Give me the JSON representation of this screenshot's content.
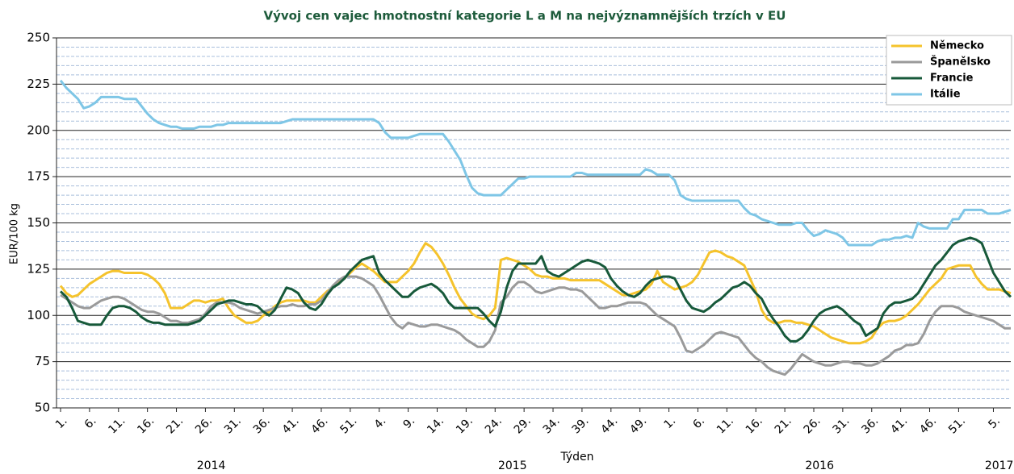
{
  "chart_data": {
    "type": "line",
    "title": "Vývoj cen vajec hmotnostní kategorie L a M na nejvýznamnějších trzích v EU",
    "y_label": "EUR/100 kg",
    "x_label": "Týden",
    "year_labels": [
      "2014",
      "2015",
      "2016",
      "2017"
    ],
    "ylim": [
      50,
      250
    ],
    "yticks": [
      50,
      75,
      100,
      125,
      150,
      175,
      200,
      225,
      250
    ],
    "minor_yticks": [
      55,
      60,
      65,
      70,
      80,
      85,
      90,
      95,
      105,
      110,
      115,
      120,
      130,
      135,
      140,
      145,
      155,
      160,
      165,
      170,
      180,
      185,
      190,
      195,
      205,
      210,
      215,
      220,
      230,
      235,
      240,
      245
    ],
    "grid": true,
    "legend": "upper right",
    "categories": [
      "1.",
      null,
      null,
      null,
      null,
      "6.",
      null,
      null,
      null,
      null,
      "11.",
      null,
      null,
      null,
      null,
      "16.",
      null,
      null,
      null,
      null,
      "21.",
      null,
      null,
      null,
      null,
      "26.",
      null,
      null,
      null,
      null,
      "31.",
      null,
      null,
      null,
      null,
      "36.",
      null,
      null,
      null,
      null,
      "41.",
      null,
      null,
      null,
      null,
      "46.",
      null,
      null,
      null,
      null,
      "51.",
      null,
      null,
      null,
      null,
      "4.",
      null,
      null,
      null,
      null,
      "9.",
      null,
      null,
      null,
      null,
      "14.",
      null,
      null,
      null,
      null,
      "19.",
      null,
      null,
      null,
      null,
      "24.",
      null,
      null,
      null,
      null,
      "29.",
      null,
      null,
      null,
      null,
      "34.",
      null,
      null,
      null,
      null,
      "39.",
      null,
      null,
      null,
      null,
      "44.",
      null,
      null,
      null,
      null,
      "49.",
      null,
      null,
      null,
      null,
      "1.",
      null,
      null,
      null,
      null,
      "6.",
      null,
      null,
      null,
      null,
      "11.",
      null,
      null,
      null,
      null,
      "16.",
      null,
      null,
      null,
      null,
      "21.",
      null,
      null,
      null,
      null,
      "26.",
      null,
      null,
      null,
      null,
      "31.",
      null,
      null,
      null,
      null,
      "36.",
      null,
      null,
      null,
      null,
      "41.",
      null,
      null,
      null,
      null,
      "46.",
      null,
      null,
      null,
      null,
      "51.",
      null,
      null,
      null,
      null,
      null,
      "5.",
      null,
      null,
      null
    ],
    "series": [
      {
        "name": "Německo",
        "color": "#f5c32c",
        "values": [
          116,
          112,
          110,
          111,
          114,
          117,
          119,
          121,
          123,
          124,
          124,
          123,
          123,
          123,
          123,
          122,
          120,
          117,
          112,
          104,
          104,
          104,
          106,
          108,
          108,
          107,
          108,
          108,
          109,
          104,
          100,
          98,
          96,
          96,
          97,
          100,
          102,
          105,
          107,
          108,
          108,
          108,
          108,
          107,
          107,
          110,
          113,
          115,
          118,
          120,
          123,
          126,
          128,
          126,
          124,
          121,
          118,
          118,
          118,
          121,
          124,
          128,
          134,
          139,
          137,
          133,
          128,
          122,
          115,
          109,
          105,
          101,
          99,
          98,
          100,
          104,
          130,
          131,
          130,
          129,
          127,
          125,
          122,
          121,
          121,
          120,
          120,
          120,
          119,
          119,
          119,
          119,
          119,
          119,
          117,
          115,
          113,
          111,
          111,
          112,
          113,
          114,
          117,
          124,
          118,
          116,
          114,
          115,
          116,
          118,
          122,
          128,
          134,
          135,
          134,
          132,
          131,
          129,
          127,
          120,
          113,
          103,
          98,
          96,
          96,
          97,
          97,
          96,
          96,
          95,
          94,
          92,
          90,
          88,
          87,
          86,
          85,
          85,
          85,
          86,
          88,
          93,
          96,
          97,
          97,
          98,
          100,
          103,
          106,
          110,
          114,
          117,
          120,
          125,
          126,
          127,
          127,
          127,
          121,
          117,
          114,
          114,
          114,
          113,
          112
        ]
      },
      {
        "name": "Španělsko",
        "color": "#9a9a9a",
        "values": [
          111,
          109,
          107,
          105,
          104,
          104,
          106,
          108,
          109,
          110,
          110,
          109,
          107,
          105,
          103,
          102,
          102,
          101,
          99,
          97,
          97,
          96,
          96,
          97,
          98,
          101,
          105,
          107,
          107,
          107,
          106,
          104,
          103,
          102,
          101,
          102,
          103,
          104,
          105,
          105,
          106,
          105,
          105,
          106,
          106,
          108,
          112,
          116,
          119,
          121,
          121,
          121,
          120,
          118,
          116,
          111,
          105,
          99,
          95,
          93,
          96,
          95,
          94,
          94,
          95,
          95,
          94,
          93,
          92,
          90,
          87,
          85,
          83,
          83,
          86,
          92,
          107,
          110,
          115,
          118,
          118,
          116,
          113,
          112,
          113,
          114,
          115,
          115,
          114,
          114,
          113,
          110,
          107,
          104,
          104,
          105,
          105,
          106,
          107,
          107,
          107,
          106,
          103,
          100,
          98,
          96,
          94,
          88,
          81,
          80,
          82,
          84,
          87,
          90,
          91,
          90,
          89,
          88,
          84,
          80,
          77,
          75,
          72,
          70,
          69,
          68,
          71,
          75,
          79,
          77,
          75,
          74,
          73,
          73,
          74,
          75,
          75,
          74,
          74,
          73,
          73,
          74,
          76,
          78,
          81,
          82,
          84,
          84,
          85,
          90,
          97,
          102,
          105,
          105,
          105,
          104,
          102,
          101,
          100,
          99,
          98,
          97,
          95,
          93,
          93
        ]
      },
      {
        "name": "Francie",
        "color": "#17593a",
        "values": [
          113,
          110,
          104,
          97,
          96,
          95,
          95,
          95,
          100,
          104,
          105,
          105,
          104,
          102,
          99,
          97,
          96,
          96,
          95,
          95,
          95,
          95,
          95,
          96,
          97,
          100,
          103,
          106,
          107,
          108,
          108,
          107,
          106,
          106,
          105,
          102,
          100,
          103,
          109,
          115,
          114,
          112,
          107,
          104,
          103,
          106,
          111,
          115,
          117,
          120,
          124,
          127,
          130,
          131,
          132,
          123,
          119,
          116,
          113,
          110,
          110,
          113,
          115,
          116,
          117,
          115,
          112,
          107,
          104,
          104,
          104,
          104,
          104,
          101,
          97,
          94,
          102,
          115,
          124,
          128,
          128,
          128,
          128,
          132,
          124,
          122,
          121,
          123,
          125,
          127,
          129,
          130,
          129,
          128,
          126,
          120,
          116,
          113,
          111,
          110,
          112,
          116,
          119,
          120,
          121,
          121,
          120,
          114,
          108,
          104,
          103,
          102,
          104,
          107,
          109,
          112,
          115,
          116,
          118,
          116,
          112,
          109,
          103,
          98,
          94,
          89,
          86,
          86,
          88,
          92,
          97,
          101,
          103,
          104,
          105,
          103,
          100,
          97,
          95,
          89,
          91,
          93,
          101,
          105,
          107,
          107,
          108,
          109,
          112,
          117,
          122,
          127,
          130,
          134,
          138,
          140,
          141,
          142,
          141,
          139,
          131,
          123,
          118,
          113,
          110
        ]
      },
      {
        "name": "Itálie",
        "color": "#7ec6e6",
        "values": [
          227,
          223,
          220,
          217,
          212,
          213,
          215,
          218,
          218,
          218,
          218,
          217,
          217,
          217,
          213,
          209,
          206,
          204,
          203,
          202,
          202,
          201,
          201,
          201,
          202,
          202,
          202,
          203,
          203,
          204,
          204,
          204,
          204,
          204,
          204,
          204,
          204,
          204,
          204,
          205,
          206,
          206,
          206,
          206,
          206,
          206,
          206,
          206,
          206,
          206,
          206,
          206,
          206,
          206,
          206,
          204,
          199,
          196,
          196,
          196,
          196,
          197,
          198,
          198,
          198,
          198,
          198,
          194,
          189,
          184,
          176,
          169,
          166,
          165,
          165,
          165,
          165,
          168,
          171,
          174,
          174,
          175,
          175,
          175,
          175,
          175,
          175,
          175,
          175,
          177,
          177,
          176,
          176,
          176,
          176,
          176,
          176,
          176,
          176,
          176,
          176,
          179,
          178,
          176,
          176,
          176,
          173,
          165,
          163,
          162,
          162,
          162,
          162,
          162,
          162,
          162,
          162,
          162,
          158,
          155,
          154,
          152,
          151,
          150,
          149,
          149,
          149,
          150,
          150,
          146,
          143,
          144,
          146,
          145,
          144,
          142,
          138,
          138,
          138,
          138,
          138,
          140,
          141,
          141,
          142,
          142,
          143,
          142,
          150,
          148,
          147,
          147,
          147,
          147,
          152,
          152,
          157,
          157,
          157,
          157,
          155,
          155,
          155,
          156,
          157
        ]
      }
    ]
  }
}
